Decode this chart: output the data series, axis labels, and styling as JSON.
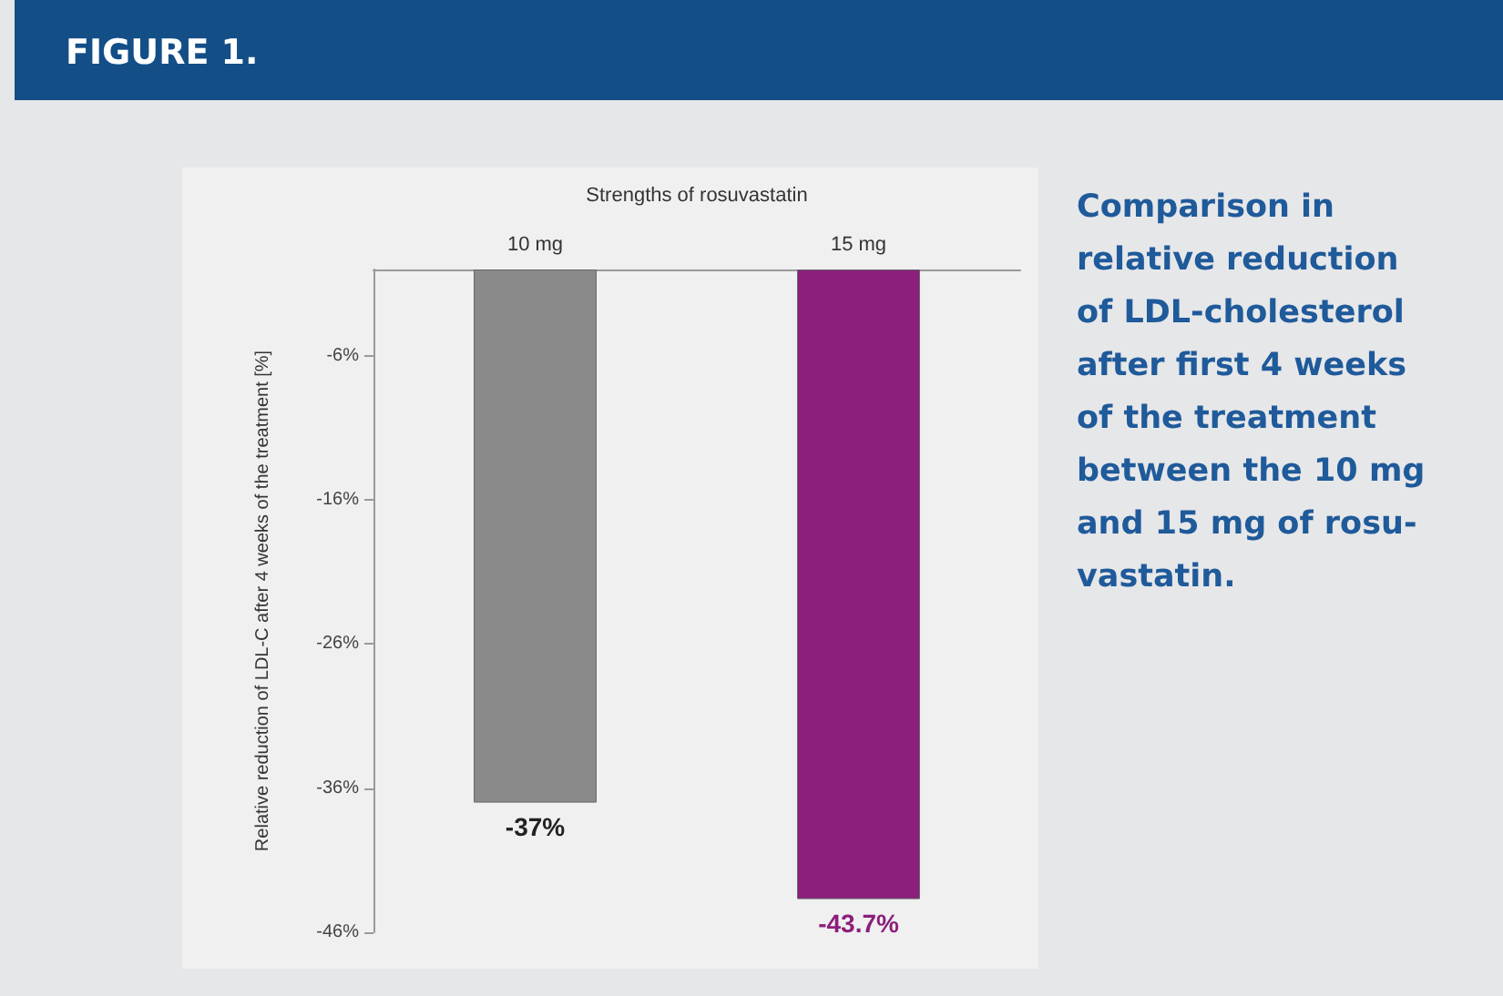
{
  "chart_data": {
    "type": "bar",
    "title": "FIGURE 1.",
    "xlabel": "Strengths of rosuvastatin",
    "ylabel": "Relative reduction of LDL-C after 4 weeks of the treatment [%]",
    "annotations": [
      "Comparison in relative reduction of LDL-cholesterol after first 4 weeks of the treatment between the 10 mg and 15 mg of rosu-vastatin."
    ],
    "categories": [
      "10 mg",
      "15 mg"
    ],
    "values": [
      -37,
      -43.7
    ],
    "colors": [
      "#8a8a8a",
      "#8b1f7b"
    ],
    "value_labels": [
      "-37%",
      "-43.7%"
    ],
    "ylim": [
      -46,
      0
    ],
    "yticks": [
      {
        "value": -6,
        "label": "-6%"
      },
      {
        "value": -16,
        "label": "-16%"
      },
      {
        "value": -26,
        "label": "-26%"
      },
      {
        "value": -36,
        "label": "-36%"
      },
      {
        "value": -46,
        "label": "-46%"
      }
    ],
    "grid": false
  }
}
